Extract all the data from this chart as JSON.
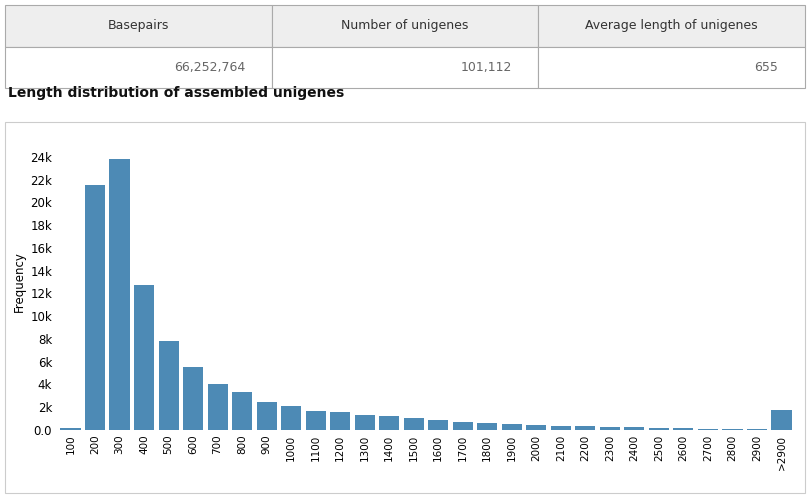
{
  "table_headers": [
    "Basepairs",
    "Number of unigenes",
    "Average length of unigenes"
  ],
  "table_values": [
    "66,252,764",
    "101,112",
    "655"
  ],
  "chart_subtitle": "Length distribution of assembled unigenes",
  "bar_color": "#4d8ab5",
  "categories": [
    "100",
    "200",
    "300",
    "400",
    "500",
    "600",
    "700",
    "800",
    "900",
    "1000",
    "1100",
    "1200",
    "1300",
    "1400",
    "1500",
    "1600",
    "1700",
    "1800",
    "1900",
    "2000",
    "2100",
    "2200",
    "2300",
    "2400",
    "2500",
    "2600",
    "2700",
    "2800",
    "2900",
    ">2900"
  ],
  "values": [
    180,
    21500,
    23800,
    12700,
    7850,
    5500,
    4000,
    3300,
    2500,
    2100,
    1700,
    1550,
    1300,
    1200,
    1080,
    890,
    740,
    600,
    490,
    430,
    370,
    310,
    270,
    230,
    195,
    165,
    130,
    95,
    55,
    1800
  ],
  "ylabel": "Frequency",
  "yticks": [
    0,
    2000,
    4000,
    6000,
    8000,
    10000,
    12000,
    14000,
    16000,
    18000,
    20000,
    22000,
    24000
  ],
  "ytick_labels": [
    "0.0",
    "2k",
    "4k",
    "6k",
    "8k",
    "10k",
    "12k",
    "14k",
    "16k",
    "18k",
    "20k",
    "22k",
    "24k"
  ],
  "ylim_max": 26000,
  "background_color": "#ffffff",
  "table_header_bg": "#eeeeee",
  "table_border_color": "#aaaaaa",
  "chart_border_color": "#cccccc",
  "text_color": "#333333",
  "value_color": "#666666",
  "font_size": 9,
  "subtitle_fontsize": 10
}
